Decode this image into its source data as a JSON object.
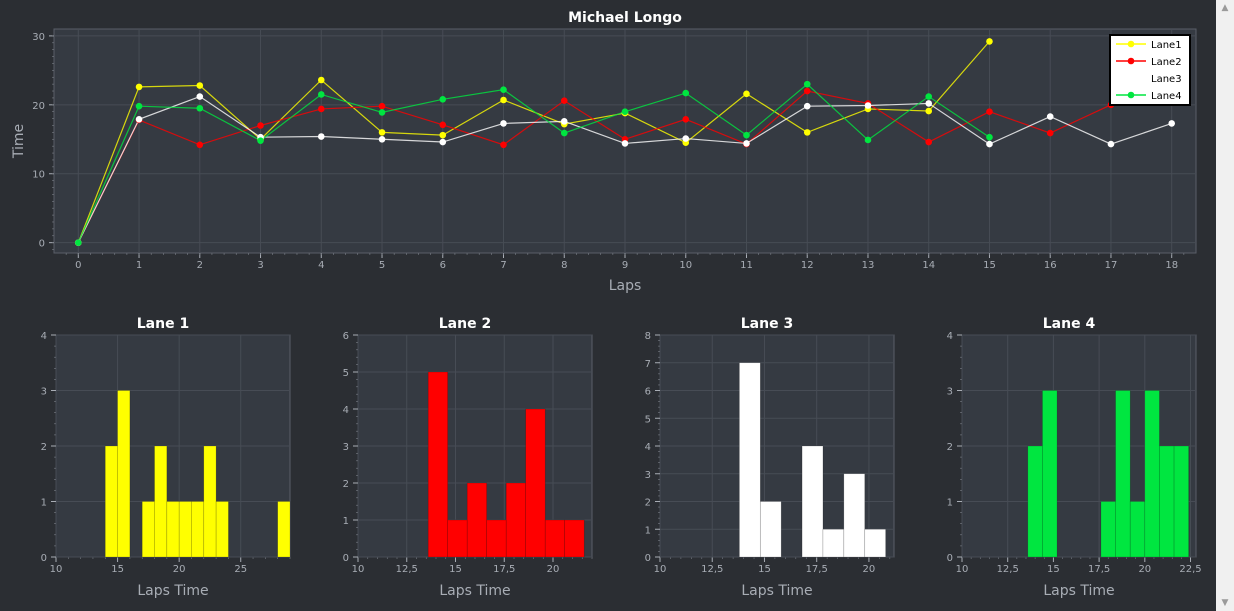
{
  "colors": {
    "background": "#2b2e33",
    "plot_bg": "#353a42",
    "grid": "#474c55",
    "axis_text": "#a8adb5",
    "title_text": "#ffffff",
    "lane1": "#ffff00",
    "lane2": "#ff0000",
    "lane3": "#ffffff",
    "lane4": "#00e640"
  },
  "chart_data": [
    {
      "type": "line",
      "title": "Michael Longo",
      "xlabel": "Laps",
      "ylabel": "Time",
      "xlim": [
        -0.4,
        18.4
      ],
      "ylim": [
        -1.5,
        31
      ],
      "xticks": [
        "0",
        "1",
        "2",
        "3",
        "4",
        "5",
        "6",
        "7",
        "8",
        "9",
        "10",
        "11",
        "12",
        "13",
        "14",
        "15",
        "16",
        "17",
        "18"
      ],
      "yticks": [
        "0",
        "10",
        "20",
        "30"
      ],
      "grid": true,
      "legend_position": "top-right",
      "series": [
        {
          "name": "Lane1",
          "color": "#ffff00",
          "x": [
            0,
            1,
            2,
            3,
            4,
            5,
            6,
            7,
            8,
            9,
            10,
            11,
            12,
            13,
            14,
            15
          ],
          "y": [
            0,
            22.6,
            22.8,
            15.0,
            23.6,
            16.0,
            15.6,
            20.7,
            17.2,
            18.8,
            14.5,
            21.6,
            16.0,
            19.4,
            19.1,
            29.2
          ]
        },
        {
          "name": "Lane2",
          "color": "#ff0000",
          "x": [
            0,
            1,
            2,
            3,
            4,
            5,
            6,
            7,
            8,
            9,
            10,
            11,
            12,
            13,
            14,
            15,
            16,
            17
          ],
          "y": [
            0,
            17.8,
            14.2,
            17.0,
            19.4,
            19.8,
            17.1,
            14.2,
            20.6,
            15.0,
            17.9,
            14.3,
            22.0,
            20.2,
            14.6,
            19.0,
            15.9,
            20.0
          ]
        },
        {
          "name": "Lane3",
          "color": "#ffffff",
          "x": [
            0,
            1,
            2,
            3,
            4,
            5,
            6,
            7,
            8,
            9,
            10,
            11,
            12,
            13,
            14,
            15,
            16,
            17,
            18
          ],
          "y": [
            0,
            17.9,
            21.2,
            15.3,
            15.4,
            15.0,
            14.6,
            17.3,
            17.6,
            14.4,
            15.1,
            14.4,
            19.8,
            19.9,
            20.2,
            14.3,
            18.3,
            14.3,
            17.3
          ]
        },
        {
          "name": "Lane4",
          "color": "#00e640",
          "x": [
            0,
            1,
            2,
            3,
            4,
            5,
            6,
            7,
            8,
            9,
            10,
            11,
            12,
            13,
            14,
            15
          ],
          "y": [
            0,
            19.8,
            19.5,
            14.8,
            21.5,
            18.9,
            20.8,
            22.2,
            15.9,
            19.0,
            21.7,
            15.6,
            23.0,
            14.9,
            21.2,
            15.3
          ]
        }
      ]
    },
    {
      "type": "bar",
      "title": "Lane 1",
      "xlabel": "Laps Time",
      "ylabel": "",
      "color": "#ffff00",
      "xlim": [
        10,
        29
      ],
      "ylim": [
        0,
        4
      ],
      "xticks": [
        10,
        15,
        20,
        25
      ],
      "xtick_labels": [
        "10",
        "15",
        "20",
        "25"
      ],
      "yticks": [
        0,
        1,
        2,
        3,
        4
      ],
      "ytick_labels": [
        "0",
        "1",
        "2",
        "3",
        "4"
      ],
      "bin_width": 1,
      "bins": [
        [
          14,
          15
        ],
        [
          15,
          16
        ],
        [
          17,
          18
        ],
        [
          18,
          19
        ],
        [
          19,
          20
        ],
        [
          20,
          21
        ],
        [
          21,
          22
        ],
        [
          22,
          23
        ],
        [
          23,
          24
        ],
        [
          28,
          29
        ]
      ],
      "values": [
        2,
        3,
        1,
        2,
        1,
        1,
        1,
        2,
        1,
        1
      ]
    },
    {
      "type": "bar",
      "title": "Lane 2",
      "xlabel": "Laps Time",
      "ylabel": "",
      "color": "#ff0000",
      "xlim": [
        10,
        22
      ],
      "ylim": [
        0,
        6
      ],
      "xticks": [
        10,
        12.5,
        15,
        17.5,
        20
      ],
      "xtick_labels": [
        "10",
        "12,5",
        "15",
        "17,5",
        "20"
      ],
      "yticks": [
        0,
        1,
        2,
        3,
        4,
        5,
        6
      ],
      "ytick_labels": [
        "0",
        "1",
        "2",
        "3",
        "4",
        "5",
        "6"
      ],
      "bins": [
        [
          13.6,
          14.6
        ],
        [
          14.6,
          15.6
        ],
        [
          15.6,
          16.6
        ],
        [
          16.6,
          17.6
        ],
        [
          17.6,
          18.6
        ],
        [
          18.6,
          19.6
        ],
        [
          19.6,
          20.6
        ],
        [
          20.6,
          21.6
        ]
      ],
      "values": [
        5,
        1,
        2,
        1,
        2,
        4,
        1,
        1
      ]
    },
    {
      "type": "bar",
      "title": "Lane 3",
      "xlabel": "Laps Time",
      "ylabel": "",
      "color": "#ffffff",
      "xlim": [
        10,
        21.2
      ],
      "ylim": [
        0,
        8
      ],
      "xticks": [
        10,
        12.5,
        15,
        17.5,
        20
      ],
      "xtick_labels": [
        "10",
        "12,5",
        "15",
        "17,5",
        "20"
      ],
      "yticks": [
        0,
        1,
        2,
        3,
        4,
        5,
        6,
        7,
        8
      ],
      "ytick_labels": [
        "0",
        "1",
        "2",
        "3",
        "4",
        "5",
        "6",
        "7",
        "8"
      ],
      "bins": [
        [
          13.8,
          14.8
        ],
        [
          14.8,
          15.8
        ],
        [
          16.8,
          17.8
        ],
        [
          17.8,
          18.8
        ],
        [
          18.8,
          19.8
        ],
        [
          19.8,
          20.8
        ]
      ],
      "values": [
        7,
        2,
        4,
        1,
        3,
        1
      ]
    },
    {
      "type": "bar",
      "title": "Lane 4",
      "xlabel": "Laps Time",
      "ylabel": "",
      "color": "#00e640",
      "xlim": [
        10,
        22.8
      ],
      "ylim": [
        0,
        4
      ],
      "xticks": [
        10,
        12.5,
        15,
        17.5,
        20,
        22.5
      ],
      "xtick_labels": [
        "10",
        "12,5",
        "15",
        "17,5",
        "20",
        "22,5"
      ],
      "yticks": [
        0,
        1,
        2,
        3,
        4
      ],
      "ytick_labels": [
        "0",
        "1",
        "2",
        "3",
        "4"
      ],
      "bins": [
        [
          13.6,
          14.4
        ],
        [
          14.4,
          15.2
        ],
        [
          17.6,
          18.4
        ],
        [
          18.4,
          19.2
        ],
        [
          19.2,
          20.0
        ],
        [
          20.0,
          20.8
        ],
        [
          20.8,
          21.6
        ],
        [
          21.6,
          22.4
        ]
      ],
      "values": [
        2,
        3,
        1,
        3,
        1,
        3,
        2,
        2
      ]
    }
  ],
  "scrollbar": {
    "up_icon": "chevron-up-icon",
    "down_icon": "chevron-down-icon"
  }
}
